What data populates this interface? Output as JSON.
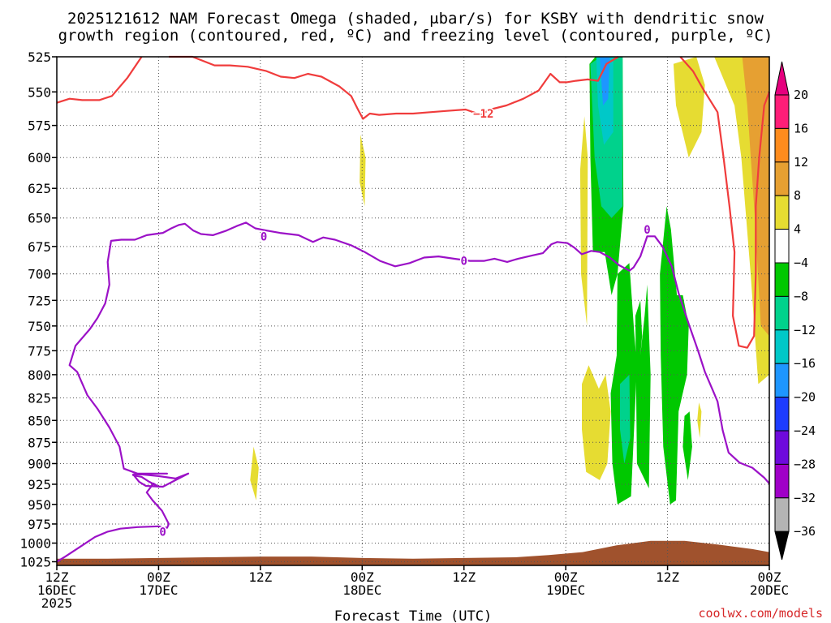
{
  "chart_data": {
    "type": "heatmap",
    "title": [
      "2025121612 NAM Forecast Omega (shaded, μbar/s) for KSBY with dendritic snow",
      "growth region (contoured, red, ºC) and freezing level (contoured, purple, ºC)"
    ],
    "xlabel": "Forecast Time (UTC)",
    "ylabel": "",
    "x_ticks": [
      {
        "label": [
          "12Z",
          "16DEC",
          "2025"
        ],
        "hours": 0
      },
      {
        "label": [
          "00Z",
          "17DEC"
        ],
        "hours": 12
      },
      {
        "label": [
          "12Z"
        ],
        "hours": 24
      },
      {
        "label": [
          "00Z",
          "18DEC"
        ],
        "hours": 36
      },
      {
        "label": [
          "12Z"
        ],
        "hours": 48
      },
      {
        "label": [
          "00Z",
          "19DEC"
        ],
        "hours": 60
      },
      {
        "label": [
          "12Z"
        ],
        "hours": 72
      },
      {
        "label": [
          "00Z",
          "20DEC"
        ],
        "hours": 84
      }
    ],
    "xlim_hours": [
      0,
      84
    ],
    "y_ticks": [
      525,
      550,
      575,
      600,
      625,
      650,
      675,
      700,
      725,
      750,
      775,
      800,
      825,
      850,
      875,
      900,
      925,
      950,
      975,
      1000,
      1025
    ],
    "ylim": [
      525,
      1030
    ],
    "y_scale": "log",
    "y_inverted": true,
    "grid": true,
    "colorbar": {
      "ticks": [
        "20",
        "16",
        "12",
        "8",
        "4",
        "−4",
        "−8",
        "−12",
        "−16",
        "−20",
        "−24",
        "−28",
        "−32",
        "−36"
      ],
      "colors": [
        "#ff1e78",
        "#ff8c1e",
        "#e6a032",
        "#e6dc32",
        "#ffffff",
        "#00c800",
        "#00d28c",
        "#00c8c8",
        "#1e96ff",
        "#1e3cff",
        "#6e0adc",
        "#a000c8",
        "#b4b4b4"
      ],
      "top_triangle": "#e6007e",
      "bottom_triangle": "#000000"
    },
    "contour_labels": [
      {
        "text": "−12",
        "hours": 50.3,
        "p": 566
      },
      {
        "text": "0",
        "hours": 24.4,
        "p": 666
      },
      {
        "text": "0",
        "hours": 48.0,
        "p": 688
      },
      {
        "text": "0",
        "hours": 69.6,
        "p": 660
      },
      {
        "text": "0",
        "hours": 12.5,
        "p": 985
      }
    ],
    "freezing_level_0C": [
      [
        0,
        1025
      ],
      [
        1,
        1018
      ],
      [
        3,
        1003
      ],
      [
        4.5,
        992
      ],
      [
        6,
        985
      ],
      [
        7.5,
        981
      ],
      [
        9.5,
        979
      ],
      [
        12,
        978
      ],
      [
        13,
        980
      ],
      [
        13.2,
        975
      ],
      [
        12.4,
        958
      ],
      [
        11.3,
        945
      ],
      [
        10.6,
        935
      ],
      [
        11.4,
        924
      ],
      [
        12,
        928
      ],
      [
        10.9,
        922
      ],
      [
        10,
        916
      ],
      [
        9,
        914
      ],
      [
        10,
        913
      ],
      [
        12,
        915
      ],
      [
        14,
        918
      ],
      [
        15.5,
        912
      ],
      [
        14,
        920
      ],
      [
        12.5,
        928
      ],
      [
        10.5,
        927
      ],
      [
        9.7,
        922
      ],
      [
        9,
        913
      ],
      [
        11,
        912
      ],
      [
        13,
        912
      ],
      [
        9.5,
        912
      ],
      [
        7.9,
        906
      ],
      [
        7.4,
        880
      ],
      [
        6.2,
        858
      ],
      [
        4.8,
        837
      ],
      [
        3.6,
        822
      ],
      [
        2.4,
        797
      ],
      [
        1.5,
        790
      ],
      [
        2.2,
        770
      ],
      [
        3.9,
        753
      ],
      [
        4.8,
        742
      ],
      [
        5.7,
        728
      ],
      [
        6.2,
        710
      ],
      [
        6.0,
        689
      ],
      [
        6.4,
        670
      ],
      [
        7.6,
        669
      ],
      [
        9.2,
        669
      ],
      [
        10.6,
        665
      ],
      [
        12.5,
        663
      ],
      [
        13.5,
        659
      ],
      [
        14.4,
        656
      ],
      [
        15.1,
        655
      ],
      [
        16.1,
        661
      ],
      [
        17.0,
        664
      ],
      [
        18.4,
        665
      ],
      [
        20.0,
        661
      ],
      [
        21.2,
        657
      ],
      [
        22.3,
        654
      ],
      [
        23.4,
        659
      ],
      [
        24.8,
        661
      ],
      [
        26.3,
        663
      ],
      [
        28.5,
        665
      ],
      [
        30.2,
        671
      ],
      [
        31.4,
        667
      ],
      [
        32.8,
        669
      ],
      [
        34.7,
        674
      ],
      [
        36.3,
        680
      ],
      [
        38.1,
        688
      ],
      [
        39.9,
        693
      ],
      [
        41.6,
        690
      ],
      [
        43.3,
        685
      ],
      [
        45.0,
        684
      ],
      [
        46.8,
        686
      ],
      [
        48.7,
        688
      ],
      [
        50.4,
        688
      ],
      [
        51.6,
        686
      ],
      [
        53.1,
        689
      ],
      [
        54.4,
        686
      ],
      [
        56.1,
        683
      ],
      [
        57.3,
        681
      ],
      [
        58.3,
        673
      ],
      [
        59.0,
        671
      ],
      [
        60.2,
        672
      ],
      [
        61.0,
        676
      ],
      [
        61.9,
        682
      ],
      [
        63.0,
        679
      ],
      [
        64.0,
        680
      ],
      [
        65.2,
        685
      ],
      [
        66.3,
        692
      ],
      [
        67.5,
        697
      ],
      [
        68.0,
        694
      ],
      [
        68.8,
        684
      ],
      [
        69.6,
        666
      ],
      [
        70.5,
        666
      ],
      [
        71.4,
        675
      ],
      [
        72.5,
        693
      ],
      [
        73.3,
        718
      ],
      [
        74.5,
        748
      ],
      [
        75.6,
        775
      ],
      [
        76.4,
        797
      ],
      [
        77.3,
        816
      ],
      [
        77.9,
        829
      ],
      [
        78.5,
        861
      ],
      [
        79.2,
        887
      ],
      [
        80.5,
        899
      ],
      [
        82.0,
        905
      ],
      [
        83.4,
        917
      ],
      [
        84,
        924
      ]
    ],
    "dgz_minus12C": [
      [
        0,
        558
      ],
      [
        1.5,
        555
      ],
      [
        3,
        556
      ],
      [
        5,
        556
      ],
      [
        6.5,
        553
      ],
      [
        8.3,
        540
      ],
      [
        10.0,
        525
      ]
    ],
    "dgz_minus12C_b": [
      [
        13.2,
        525
      ],
      [
        16.0,
        525
      ],
      [
        18.6,
        531
      ],
      [
        20.4,
        531
      ],
      [
        22.5,
        532
      ],
      [
        24.7,
        535
      ],
      [
        26.4,
        539
      ],
      [
        28.0,
        540
      ],
      [
        29.6,
        537
      ],
      [
        31.2,
        539
      ],
      [
        33.3,
        546
      ],
      [
        34.7,
        553
      ],
      [
        35.5,
        563
      ],
      [
        36.1,
        570
      ],
      [
        36.9,
        566
      ],
      [
        38.0,
        567
      ],
      [
        40.0,
        566
      ],
      [
        42.0,
        566
      ],
      [
        44.0,
        565
      ],
      [
        46.0,
        564
      ],
      [
        48.2,
        563
      ],
      [
        50.0,
        567
      ],
      [
        51.1,
        563
      ],
      [
        53.0,
        560
      ],
      [
        55.0,
        555
      ],
      [
        56.8,
        549
      ],
      [
        58.2,
        537
      ],
      [
        59.3,
        543
      ],
      [
        60.1,
        543
      ],
      [
        61.2,
        542
      ],
      [
        62.6,
        541
      ],
      [
        63.8,
        542
      ],
      [
        64.8,
        530
      ],
      [
        66.2,
        525
      ]
    ]
  }
}
